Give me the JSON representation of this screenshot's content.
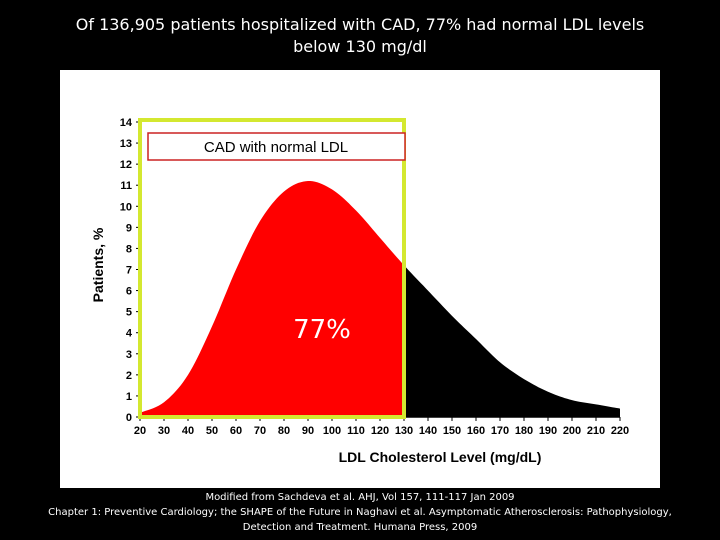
{
  "slide": {
    "title_line1": "Of 136,905 patients hospitalized with CAD, 77% had normal LDL levels",
    "title_line2": "below 130 mg/dl",
    "footer_line1": "Modified from Sachdeva et al. AHJ, Vol 157, 111-117 Jan 2009",
    "footer_line2": "Chapter 1: Preventive Cardiology; the SHAPE of the Future in Naghavi et al. Asymptomatic Atherosclerosis: Pathophysiology,",
    "footer_line3": "Detection and Treatment. Humana Press, 2009"
  },
  "chart_data": {
    "type": "area",
    "title": "",
    "xlabel": "LDL Cholesterol Level (mg/dL)",
    "ylabel": "Patients, %",
    "xlim": [
      20,
      220
    ],
    "ylim": [
      0,
      14
    ],
    "x_ticks": [
      20,
      30,
      40,
      50,
      60,
      70,
      80,
      90,
      100,
      110,
      120,
      130,
      140,
      150,
      160,
      170,
      180,
      190,
      200,
      210,
      220
    ],
    "y_ticks": [
      0,
      1,
      2,
      3,
      4,
      5,
      6,
      7,
      8,
      9,
      10,
      11,
      12,
      13,
      14
    ],
    "x": [
      20,
      30,
      40,
      50,
      60,
      70,
      80,
      90,
      100,
      110,
      120,
      130,
      140,
      150,
      160,
      170,
      180,
      190,
      200,
      210,
      220
    ],
    "y": [
      0.2,
      0.7,
      2.0,
      4.3,
      7.0,
      9.3,
      10.7,
      11.2,
      10.8,
      9.8,
      8.5,
      7.2,
      6.0,
      4.8,
      3.7,
      2.6,
      1.8,
      1.2,
      0.8,
      0.6,
      0.4
    ],
    "threshold_x": 130,
    "highlight": {
      "label": "CAD with normal LDL",
      "percent_label": "77%",
      "x_range": [
        20,
        130
      ],
      "fill_color": "#ff0000",
      "border_color": "#d4e830"
    },
    "above_threshold_fill": "#000000"
  }
}
